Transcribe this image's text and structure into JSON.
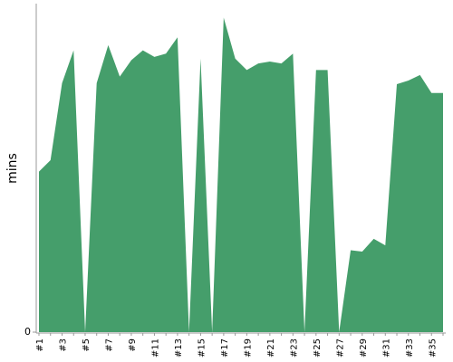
{
  "chart_data": {
    "type": "area",
    "y_label": "mins",
    "categories": [
      "#1",
      null,
      "#3",
      null,
      "#5",
      null,
      "#7",
      null,
      "#9",
      null,
      "#11",
      null,
      "#13",
      null,
      "#15",
      null,
      "#17",
      null,
      "#19",
      null,
      "#21",
      null,
      "#23",
      null,
      "#25",
      null,
      "#27",
      null,
      "#29",
      null,
      "#31",
      null,
      "#33",
      null,
      "#35",
      null
    ],
    "values": [
      49,
      52.5,
      76,
      86,
      0,
      76,
      87.6,
      78,
      83,
      86,
      84,
      85,
      90,
      0,
      83.5,
      0,
      96,
      83.5,
      80,
      82,
      82.6,
      82,
      85,
      0,
      80,
      80,
      0,
      25,
      24.6,
      28.5,
      26.5,
      75.7,
      76.8,
      78.5,
      73,
      73
    ],
    "color": "#459e6b",
    "ylim": [
      0,
      100
    ],
    "yticks": [
      0
    ]
  }
}
